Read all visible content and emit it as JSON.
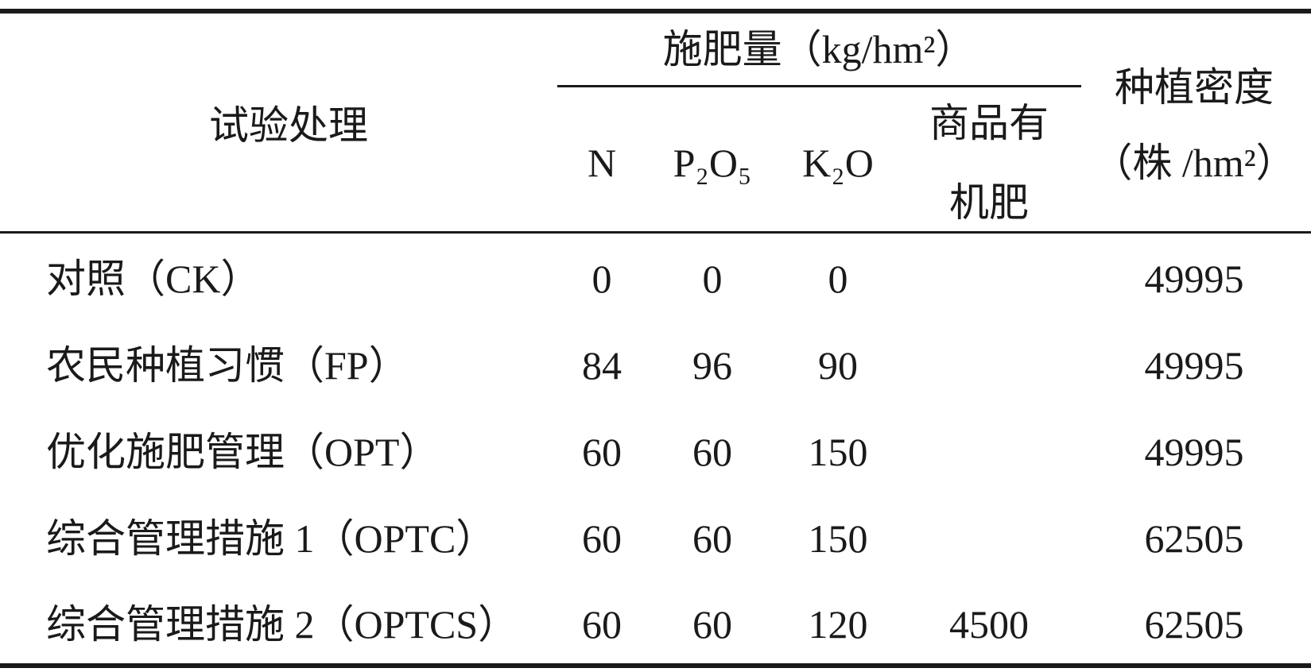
{
  "table": {
    "header": {
      "treatment": "试验处理",
      "fertilizer": "施肥量（kg/hm²）",
      "columns": [
        [
          "N"
        ],
        [
          "P₂O₅"
        ],
        [
          "K₂O"
        ],
        [
          "商品有",
          "机肥"
        ]
      ],
      "density": [
        "种植密度",
        "（株 /hm²）"
      ]
    },
    "rows": [
      [
        "对照（CK）",
        0,
        0,
        0,
        null,
        49995
      ],
      [
        "农民种植习惯（FP）",
        84,
        96,
        90,
        null,
        49995
      ],
      [
        "优化施肥管理（OPT）",
        60,
        60,
        150,
        null,
        49995
      ],
      [
        "综合管理措施 1（OPTC）",
        60,
        60,
        150,
        null,
        62505
      ],
      [
        "综合管理措施 2（OPTCS）",
        60,
        60,
        120,
        4500,
        62505
      ]
    ]
  }
}
